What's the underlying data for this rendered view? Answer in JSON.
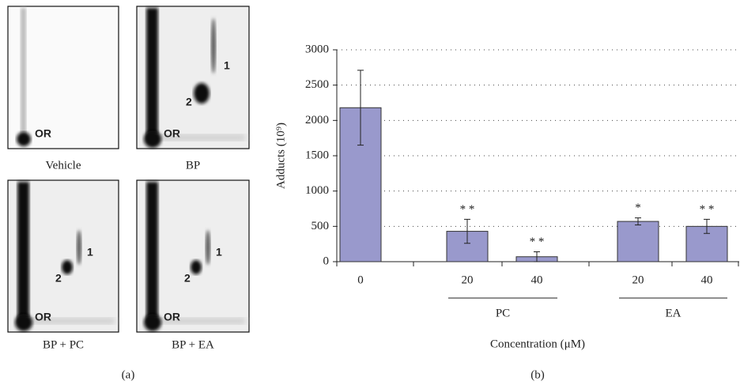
{
  "panel_a": {
    "label": "(a)",
    "images": [
      {
        "caption": "Vehicle",
        "spots": [
          "OR"
        ]
      },
      {
        "caption": "BP",
        "spots": [
          "OR",
          "2",
          "1"
        ]
      },
      {
        "caption": "BP + PC",
        "spots": [
          "OR",
          "2",
          "1"
        ]
      },
      {
        "caption": "BP + EA",
        "spots": [
          "OR",
          "2",
          "1"
        ]
      }
    ]
  },
  "chart_data": {
    "type": "bar",
    "panel_label": "(b)",
    "y_label": "Adducts (10⁹)",
    "x_label": "Concentration (μM)",
    "categories": [
      "0",
      "20",
      "40",
      "20",
      "40"
    ],
    "groups": [
      {
        "name": "PC",
        "members": [
          1,
          2
        ]
      },
      {
        "name": "EA",
        "members": [
          3,
          4
        ]
      }
    ],
    "values": [
      2180,
      430,
      70,
      570,
      500
    ],
    "errors": [
      530,
      170,
      70,
      50,
      100
    ],
    "significance": [
      null,
      "* *",
      "* *",
      "*",
      "* *"
    ],
    "color": "#9999cc",
    "ylim": [
      0,
      3000
    ],
    "yticks": [
      0,
      500,
      1000,
      1500,
      2000,
      2500,
      3000
    ],
    "grid": true
  }
}
